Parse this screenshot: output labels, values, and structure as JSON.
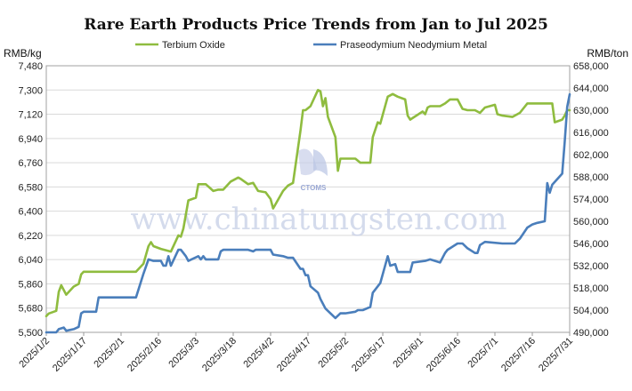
{
  "chart_data": {
    "type": "line",
    "title": "Rare Earth Products Price Trends from Jan to Jul 2025",
    "left_axis_unit": "RMB/kg",
    "right_axis_unit": "RMB/ton",
    "y_left_ticks": [
      "5,500",
      "5,680",
      "5,860",
      "6,040",
      "6,220",
      "6,400",
      "6,580",
      "6,760",
      "6,940",
      "7,120",
      "7,300",
      "7,480"
    ],
    "y_left_lim": [
      5500,
      7480
    ],
    "y_right_ticks": [
      "490,000",
      "504,000",
      "518,000",
      "532,000",
      "546,000",
      "560,000",
      "574,000",
      "588,000",
      "602,000",
      "616,000",
      "630,000",
      "644,000",
      "658,000"
    ],
    "y_right_lim": [
      490000,
      658000
    ],
    "x_ticks": [
      "2025/1/2",
      "2025/1/17",
      "2025/2/1",
      "2025/2/16",
      "2025/3/3",
      "2025/3/18",
      "2025/4/2",
      "2025/4/17",
      "2025/5/2",
      "2025/5/17",
      "2025/6/1",
      "2025/6/16",
      "2025/7/1",
      "2025/7/16",
      "2025/7/31"
    ],
    "x_range": [
      "2025-01-02",
      "2025-07-31"
    ],
    "grid": true,
    "legend_position": "top",
    "watermark": "www.chinatungsten.com",
    "watermark_logo": "CTOMS",
    "series": [
      {
        "name": "Terbium Oxide",
        "axis": "left",
        "color": "#8fbc3f",
        "points": [
          [
            "2025-01-02",
            5620
          ],
          [
            "2025-01-03",
            5640
          ],
          [
            "2025-01-06",
            5660
          ],
          [
            "2025-01-07",
            5800
          ],
          [
            "2025-01-08",
            5850
          ],
          [
            "2025-01-10",
            5780
          ],
          [
            "2025-01-13",
            5840
          ],
          [
            "2025-01-15",
            5860
          ],
          [
            "2025-01-16",
            5930
          ],
          [
            "2025-01-17",
            5950
          ],
          [
            "2025-01-20",
            5950
          ],
          [
            "2025-01-23",
            5950
          ],
          [
            "2025-01-27",
            5950
          ],
          [
            "2025-02-05",
            5950
          ],
          [
            "2025-02-07",
            5950
          ],
          [
            "2025-02-10",
            6010
          ],
          [
            "2025-02-12",
            6140
          ],
          [
            "2025-02-13",
            6170
          ],
          [
            "2025-02-14",
            6140
          ],
          [
            "2025-02-17",
            6120
          ],
          [
            "2025-02-19",
            6110
          ],
          [
            "2025-02-21",
            6100
          ],
          [
            "2025-02-24",
            6220
          ],
          [
            "2025-02-25",
            6210
          ],
          [
            "2025-02-26",
            6270
          ],
          [
            "2025-02-28",
            6480
          ],
          [
            "2025-03-03",
            6500
          ],
          [
            "2025-03-04",
            6600
          ],
          [
            "2025-03-07",
            6600
          ],
          [
            "2025-03-10",
            6550
          ],
          [
            "2025-03-12",
            6560
          ],
          [
            "2025-03-14",
            6560
          ],
          [
            "2025-03-17",
            6620
          ],
          [
            "2025-03-20",
            6650
          ],
          [
            "2025-03-21",
            6640
          ],
          [
            "2025-03-24",
            6600
          ],
          [
            "2025-03-26",
            6610
          ],
          [
            "2025-03-28",
            6550
          ],
          [
            "2025-03-31",
            6540
          ],
          [
            "2025-04-02",
            6490
          ],
          [
            "2025-04-03",
            6420
          ],
          [
            "2025-04-07",
            6550
          ],
          [
            "2025-04-09",
            6590
          ],
          [
            "2025-04-11",
            6610
          ],
          [
            "2025-04-14",
            7000
          ],
          [
            "2025-04-15",
            7150
          ],
          [
            "2025-04-16",
            7150
          ],
          [
            "2025-04-18",
            7180
          ],
          [
            "2025-04-21",
            7300
          ],
          [
            "2025-04-22",
            7290
          ],
          [
            "2025-04-23",
            7180
          ],
          [
            "2025-04-24",
            7240
          ],
          [
            "2025-04-25",
            7100
          ],
          [
            "2025-04-28",
            6950
          ],
          [
            "2025-04-29",
            6700
          ],
          [
            "2025-04-30",
            6790
          ],
          [
            "2025-05-06",
            6790
          ],
          [
            "2025-05-08",
            6760
          ],
          [
            "2025-05-12",
            6760
          ],
          [
            "2025-05-13",
            6950
          ],
          [
            "2025-05-15",
            7060
          ],
          [
            "2025-05-16",
            7050
          ],
          [
            "2025-05-19",
            7250
          ],
          [
            "2025-05-21",
            7270
          ],
          [
            "2025-05-23",
            7250
          ],
          [
            "2025-05-26",
            7230
          ],
          [
            "2025-05-27",
            7110
          ],
          [
            "2025-05-28",
            7080
          ],
          [
            "2025-06-02",
            7140
          ],
          [
            "2025-06-03",
            7120
          ],
          [
            "2025-06-04",
            7170
          ],
          [
            "2025-06-05",
            7180
          ],
          [
            "2025-06-09",
            7180
          ],
          [
            "2025-06-11",
            7200
          ],
          [
            "2025-06-13",
            7230
          ],
          [
            "2025-06-16",
            7230
          ],
          [
            "2025-06-18",
            7160
          ],
          [
            "2025-06-20",
            7150
          ],
          [
            "2025-06-23",
            7150
          ],
          [
            "2025-06-25",
            7130
          ],
          [
            "2025-06-27",
            7170
          ],
          [
            "2025-07-01",
            7190
          ],
          [
            "2025-07-02",
            7120
          ],
          [
            "2025-07-04",
            7110
          ],
          [
            "2025-07-08",
            7100
          ],
          [
            "2025-07-11",
            7130
          ],
          [
            "2025-07-14",
            7200
          ],
          [
            "2025-07-17",
            7200
          ],
          [
            "2025-07-21",
            7200
          ],
          [
            "2025-07-24",
            7200
          ],
          [
            "2025-07-25",
            7060
          ],
          [
            "2025-07-28",
            7080
          ],
          [
            "2025-07-29",
            7110
          ],
          [
            "2025-07-30",
            7150
          ],
          [
            "2025-07-31",
            7150
          ]
        ]
      },
      {
        "name": "Praseodymium Neodymium Metal",
        "axis": "right",
        "color": "#4a7ebb",
        "points": [
          [
            "2025-01-02",
            490000
          ],
          [
            "2025-01-06",
            490000
          ],
          [
            "2025-01-07",
            492000
          ],
          [
            "2025-01-09",
            493000
          ],
          [
            "2025-01-10",
            491000
          ],
          [
            "2025-01-13",
            492000
          ],
          [
            "2025-01-15",
            493500
          ],
          [
            "2025-01-16",
            502000
          ],
          [
            "2025-01-17",
            503000
          ],
          [
            "2025-01-20",
            503000
          ],
          [
            "2025-01-22",
            503000
          ],
          [
            "2025-01-23",
            512000
          ],
          [
            "2025-01-27",
            512000
          ],
          [
            "2025-02-05",
            512000
          ],
          [
            "2025-02-07",
            512000
          ],
          [
            "2025-02-10",
            527000
          ],
          [
            "2025-02-12",
            536000
          ],
          [
            "2025-02-14",
            535000
          ],
          [
            "2025-02-17",
            535000
          ],
          [
            "2025-02-18",
            532000
          ],
          [
            "2025-02-19",
            532000
          ],
          [
            "2025-02-20",
            538000
          ],
          [
            "2025-02-21",
            532000
          ],
          [
            "2025-02-24",
            542000
          ],
          [
            "2025-02-25",
            542000
          ],
          [
            "2025-02-27",
            538000
          ],
          [
            "2025-02-28",
            535000
          ],
          [
            "2025-03-04",
            538000
          ],
          [
            "2025-03-05",
            536000
          ],
          [
            "2025-03-06",
            538000
          ],
          [
            "2025-03-07",
            536000
          ],
          [
            "2025-03-12",
            536000
          ],
          [
            "2025-03-13",
            541000
          ],
          [
            "2025-03-14",
            542000
          ],
          [
            "2025-03-20",
            542000
          ],
          [
            "2025-03-24",
            542000
          ],
          [
            "2025-03-26",
            541000
          ],
          [
            "2025-03-27",
            542000
          ],
          [
            "2025-04-01",
            542000
          ],
          [
            "2025-04-02",
            542000
          ],
          [
            "2025-04-03",
            539000
          ],
          [
            "2025-04-07",
            538000
          ],
          [
            "2025-04-09",
            537000
          ],
          [
            "2025-04-11",
            537000
          ],
          [
            "2025-04-14",
            530000
          ],
          [
            "2025-04-15",
            530000
          ],
          [
            "2025-04-16",
            526000
          ],
          [
            "2025-04-17",
            526000
          ],
          [
            "2025-04-18",
            519000
          ],
          [
            "2025-04-21",
            515000
          ],
          [
            "2025-04-22",
            511000
          ],
          [
            "2025-04-24",
            505000
          ],
          [
            "2025-04-28",
            499000
          ],
          [
            "2025-04-30",
            502000
          ],
          [
            "2025-05-02",
            502000
          ],
          [
            "2025-05-06",
            503000
          ],
          [
            "2025-05-07",
            504000
          ],
          [
            "2025-05-09",
            504000
          ],
          [
            "2025-05-12",
            506000
          ],
          [
            "2025-05-13",
            515000
          ],
          [
            "2025-05-15",
            519000
          ],
          [
            "2025-05-16",
            521000
          ],
          [
            "2025-05-19",
            538000
          ],
          [
            "2025-05-20",
            532000
          ],
          [
            "2025-05-22",
            533000
          ],
          [
            "2025-05-23",
            528000
          ],
          [
            "2025-05-28",
            528000
          ],
          [
            "2025-05-29",
            534000
          ],
          [
            "2025-06-03",
            535000
          ],
          [
            "2025-06-05",
            536000
          ],
          [
            "2025-06-09",
            534000
          ],
          [
            "2025-06-11",
            540000
          ],
          [
            "2025-06-12",
            542000
          ],
          [
            "2025-06-16",
            546000
          ],
          [
            "2025-06-18",
            546000
          ],
          [
            "2025-06-20",
            543000
          ],
          [
            "2025-06-23",
            540000
          ],
          [
            "2025-06-24",
            540000
          ],
          [
            "2025-06-25",
            545000
          ],
          [
            "2025-06-27",
            547000
          ],
          [
            "2025-07-04",
            546000
          ],
          [
            "2025-07-09",
            546000
          ],
          [
            "2025-07-11",
            549000
          ],
          [
            "2025-07-14",
            556000
          ],
          [
            "2025-07-16",
            558000
          ],
          [
            "2025-07-18",
            559000
          ],
          [
            "2025-07-21",
            560000
          ],
          [
            "2025-07-22",
            584000
          ],
          [
            "2025-07-23",
            578000
          ],
          [
            "2025-07-24",
            583000
          ],
          [
            "2025-07-28",
            590000
          ],
          [
            "2025-07-29",
            610000
          ],
          [
            "2025-07-30",
            632000
          ],
          [
            "2025-07-31",
            640000
          ]
        ]
      }
    ]
  }
}
